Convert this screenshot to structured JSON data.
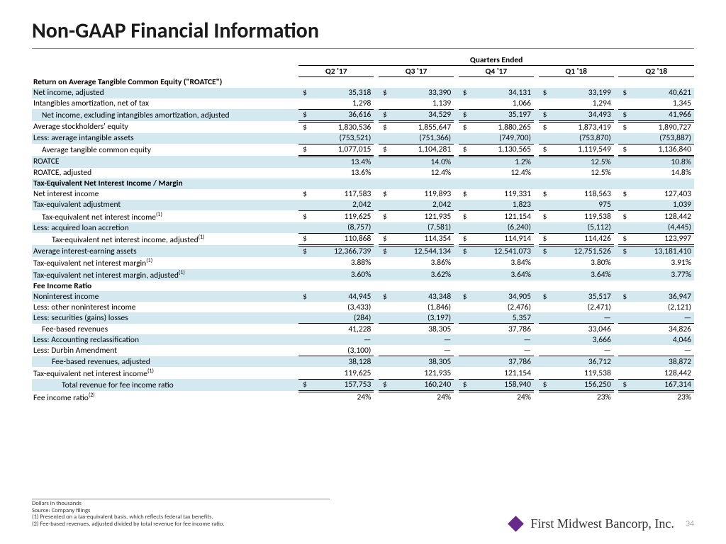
{
  "title": "Non-GAAP Financial Information",
  "super_header": "Quarters Ended",
  "columns": [
    "Q2 '17",
    "Q3 '17",
    "Q4 '17",
    "Q1 '18",
    "Q2 '18"
  ],
  "footer": {
    "f1": "Dollars in thousands",
    "f2": "Source: Company filings",
    "f3": "(1) Presented on a tax-equivalent basis, which reflects federal tax benefits.",
    "f4": "(2) Fee-based revenues, adjusted divided by total revenue for fee income ratio.",
    "company": "First Midwest Bancorp, Inc.",
    "page": "34"
  },
  "rows": [
    {
      "t": "section",
      "label": "Return on Average Tangible Common Equity (\"ROATCE\")"
    },
    {
      "t": "money",
      "label": "Net income, adjusted",
      "shade": true,
      "cur": true,
      "v": [
        "35,318",
        "33,390",
        "34,131",
        "33,199",
        "40,621"
      ]
    },
    {
      "t": "money",
      "label": "Intangibles amortization, net of tax",
      "uline": true,
      "v": [
        "1,298",
        "1,139",
        "1,066",
        "1,294",
        "1,345"
      ]
    },
    {
      "t": "money",
      "label": "Net income, excluding intangibles amortization, adjusted",
      "shade": true,
      "indent": 1,
      "cur": true,
      "dline": true,
      "v": [
        "36,616",
        "34,529",
        "35,197",
        "34,493",
        "41,966"
      ]
    },
    {
      "t": "money",
      "label": "Average stockholders' equity",
      "cur": true,
      "v": [
        "1,830,536",
        "1,855,647",
        "1,880,265",
        "1,873,419",
        "1,890,727"
      ]
    },
    {
      "t": "money",
      "label": "Less: average intangible assets",
      "shade": true,
      "uline": true,
      "v": [
        "(753,521)",
        "(751,366)",
        "(749,700)",
        "(753,870)",
        "(753,887)"
      ]
    },
    {
      "t": "money",
      "label": "Average tangible common equity",
      "indent": 1,
      "cur": true,
      "dline": true,
      "v": [
        "1,077,015",
        "1,104,281",
        "1,130,565",
        "1,119,549",
        "1,136,840"
      ]
    },
    {
      "t": "pct",
      "label": "ROATCE",
      "shade": true,
      "v": [
        "13.4%",
        "14.0%",
        "1.2%",
        "12.5%",
        "10.8%"
      ]
    },
    {
      "t": "pct",
      "label": "ROATCE, adjusted",
      "v": [
        "13.6%",
        "12.4%",
        "12.4%",
        "12.5%",
        "14.8%"
      ]
    },
    {
      "t": "section",
      "label": "Tax-Equivalent Net Interest Income / Margin",
      "shade": true
    },
    {
      "t": "money",
      "label": "Net interest income",
      "cur": true,
      "v": [
        "117,583",
        "119,893",
        "119,331",
        "118,563",
        "127,403"
      ]
    },
    {
      "t": "money",
      "label": "Tax-equivalent adjustment",
      "shade": true,
      "uline": true,
      "v": [
        "2,042",
        "2,042",
        "1,823",
        "975",
        "1,039"
      ]
    },
    {
      "t": "money",
      "label": "Tax-equivalent net interest income",
      "sup": "(1)",
      "indent": 1,
      "cur": true,
      "v": [
        "119,625",
        "121,935",
        "121,154",
        "119,538",
        "128,442"
      ]
    },
    {
      "t": "money",
      "label": "Less: acquired loan accretion",
      "shade": true,
      "uline": true,
      "v": [
        "(8,757)",
        "(7,581)",
        "(6,240)",
        "(5,112)",
        "(4,445)"
      ]
    },
    {
      "t": "money",
      "label": "Tax-equivalent net interest income, adjusted",
      "sup": "(1)",
      "indent": 2,
      "cur": true,
      "dline": true,
      "v": [
        "110,868",
        "114,354",
        "114,914",
        "114,426",
        "123,997"
      ]
    },
    {
      "t": "money",
      "label": "Average interest-earning assets",
      "shade": true,
      "cur": true,
      "v": [
        "12,366,739",
        "12,544,134",
        "12,541,073",
        "12,751,526",
        "13,181,410"
      ]
    },
    {
      "t": "pct",
      "label": "Tax-equivalent net interest margin",
      "sup": "(1)",
      "v": [
        "3.88%",
        "3.86%",
        "3.84%",
        "3.80%",
        "3.91%"
      ]
    },
    {
      "t": "pct",
      "label": "Tax-equivalent net interest margin, adjusted",
      "sup": "(1)",
      "shade": true,
      "v": [
        "3.60%",
        "3.62%",
        "3.64%",
        "3.64%",
        "3.77%"
      ]
    },
    {
      "t": "section",
      "label": "Fee Income Ratio"
    },
    {
      "t": "money",
      "label": "Noninterest income",
      "shade": true,
      "cur": true,
      "v": [
        "44,945",
        "43,348",
        "34,905",
        "35,517",
        "36,947"
      ]
    },
    {
      "t": "money",
      "label": "Less: other noninterest income",
      "v": [
        "(3,433)",
        "(1,846)",
        "(2,476)",
        "(2,471)",
        "(2,121)"
      ]
    },
    {
      "t": "money",
      "label": "Less: securities (gains) losses",
      "shade": true,
      "uline": true,
      "v": [
        "(284)",
        "(3,197)",
        "5,357",
        "—",
        "—"
      ]
    },
    {
      "t": "money",
      "label": "Fee-based revenues",
      "indent": 1,
      "v": [
        "41,228",
        "38,305",
        "37,786",
        "33,046",
        "34,826"
      ]
    },
    {
      "t": "money",
      "label": "Less: Accounting reclassification",
      "shade": true,
      "v": [
        "—",
        "—",
        "—",
        "3,666",
        "4,046"
      ]
    },
    {
      "t": "money",
      "label": "Less: Durbin Amendment",
      "uline": true,
      "v": [
        "(3,100)",
        "—",
        "—",
        "—",
        "—"
      ]
    },
    {
      "t": "money",
      "label": "Fee-based revenues, adjusted",
      "shade": true,
      "indent": 2,
      "v": [
        "38,128",
        "38,305",
        "37,786",
        "36,712",
        "38,872"
      ]
    },
    {
      "t": "money",
      "label": "Tax-equivalent net interest income",
      "sup": "(1)",
      "uline": true,
      "v": [
        "119,625",
        "121,935",
        "121,154",
        "119,538",
        "128,442"
      ]
    },
    {
      "t": "money",
      "label": "Total revenue for fee income ratio",
      "shade": true,
      "indent": 3,
      "cur": true,
      "dline": true,
      "v": [
        "157,753",
        "160,240",
        "158,940",
        "156,250",
        "167,314"
      ]
    },
    {
      "t": "pct",
      "label": "Fee income ratio",
      "sup": "(2)",
      "v": [
        "24%",
        "24%",
        "24%",
        "23%",
        "23%"
      ]
    }
  ],
  "style": {
    "shade_color": "#d4e8f0",
    "title_color": "#1a1a1a",
    "title_fontsize": 30,
    "body_fontsize": 11.5,
    "footnote_fontsize": 8.5,
    "company_fontsize": 18,
    "logo_color": "#672a8a"
  }
}
